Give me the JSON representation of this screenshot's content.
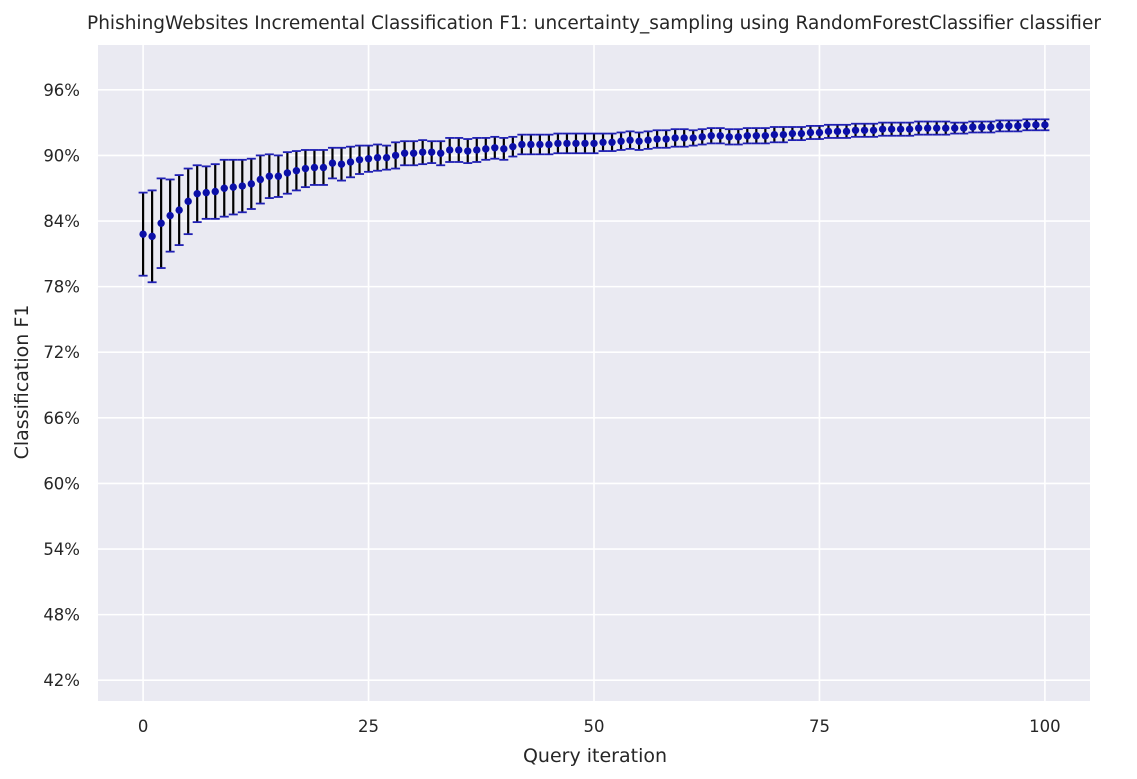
{
  "chart_data": {
    "type": "scatter",
    "title": "PhishingWebsites Incremental Classification F1: uncertainty_sampling using RandomForestClassifier classifier",
    "xlabel": "Query iteration",
    "ylabel": "Classification F1",
    "xlim": [
      -5,
      105
    ],
    "ylim": [
      40.1,
      100.1
    ],
    "xticks": [
      0,
      25,
      50,
      75,
      100
    ],
    "yticks": [
      42,
      48,
      54,
      60,
      66,
      72,
      78,
      84,
      90,
      96
    ],
    "ytick_labels": [
      "42%",
      "48%",
      "54%",
      "60%",
      "66%",
      "72%",
      "78%",
      "84%",
      "90%",
      "96%"
    ],
    "grid": true,
    "style": {
      "background": "#EAEAF2",
      "grid_color": "#ffffff",
      "marker_color": "#0B0FA8",
      "errorbar_color": "#000000",
      "cap_color": "#1F1FB4"
    },
    "series": [
      {
        "x": [
          0,
          1,
          2,
          3,
          4,
          5,
          6,
          7,
          8,
          9,
          10,
          11,
          12,
          13,
          14,
          15,
          16,
          17,
          18,
          19,
          20,
          21,
          22,
          23,
          24,
          25,
          26,
          27,
          28,
          29,
          30,
          31,
          32,
          33,
          34,
          35,
          36,
          37,
          38,
          39,
          40,
          41,
          42,
          43,
          44,
          45,
          46,
          47,
          48,
          49,
          50,
          51,
          52,
          53,
          54,
          55,
          56,
          57,
          58,
          59,
          60,
          61,
          62,
          63,
          64,
          65,
          66,
          67,
          68,
          69,
          70,
          71,
          72,
          73,
          74,
          75,
          76,
          77,
          78,
          79,
          80,
          81,
          82,
          83,
          84,
          85,
          86,
          87,
          88,
          89,
          90,
          91,
          92,
          93,
          94,
          95,
          96,
          97,
          98,
          99,
          100
        ],
        "y": [
          82.8,
          82.6,
          83.8,
          84.5,
          85.0,
          85.8,
          86.5,
          86.6,
          86.7,
          87.0,
          87.1,
          87.2,
          87.4,
          87.8,
          88.1,
          88.1,
          88.4,
          88.6,
          88.8,
          88.9,
          88.9,
          89.3,
          89.2,
          89.4,
          89.6,
          89.7,
          89.8,
          89.8,
          90.0,
          90.2,
          90.2,
          90.3,
          90.3,
          90.2,
          90.5,
          90.5,
          90.4,
          90.5,
          90.6,
          90.7,
          90.6,
          90.8,
          91.0,
          91.0,
          91.0,
          91.0,
          91.1,
          91.1,
          91.1,
          91.1,
          91.1,
          91.2,
          91.2,
          91.3,
          91.4,
          91.3,
          91.4,
          91.5,
          91.5,
          91.6,
          91.6,
          91.6,
          91.7,
          91.8,
          91.8,
          91.7,
          91.7,
          91.8,
          91.8,
          91.8,
          91.9,
          91.9,
          92.0,
          92.0,
          92.1,
          92.1,
          92.2,
          92.2,
          92.2,
          92.3,
          92.3,
          92.3,
          92.4,
          92.4,
          92.4,
          92.4,
          92.5,
          92.5,
          92.5,
          92.5,
          92.5,
          92.5,
          92.6,
          92.6,
          92.6,
          92.7,
          92.7,
          92.7,
          92.8,
          92.8,
          92.8
        ],
        "err": [
          3.8,
          4.2,
          4.1,
          3.3,
          3.2,
          3.0,
          2.6,
          2.4,
          2.5,
          2.6,
          2.5,
          2.4,
          2.3,
          2.2,
          2.0,
          1.9,
          1.9,
          1.8,
          1.7,
          1.6,
          1.6,
          1.4,
          1.5,
          1.4,
          1.3,
          1.2,
          1.2,
          1.1,
          1.2,
          1.1,
          1.1,
          1.1,
          1.0,
          1.1,
          1.1,
          1.1,
          1.1,
          1.1,
          1.0,
          1.0,
          1.0,
          0.9,
          0.9,
          0.9,
          0.9,
          0.9,
          0.9,
          0.9,
          0.9,
          0.9,
          0.9,
          0.8,
          0.8,
          0.8,
          0.8,
          0.8,
          0.8,
          0.8,
          0.8,
          0.8,
          0.8,
          0.7,
          0.7,
          0.7,
          0.7,
          0.7,
          0.7,
          0.7,
          0.7,
          0.7,
          0.7,
          0.7,
          0.6,
          0.6,
          0.6,
          0.6,
          0.6,
          0.6,
          0.6,
          0.6,
          0.6,
          0.6,
          0.6,
          0.6,
          0.6,
          0.6,
          0.6,
          0.6,
          0.6,
          0.6,
          0.5,
          0.5,
          0.5,
          0.5,
          0.5,
          0.5,
          0.5,
          0.5,
          0.5,
          0.5,
          0.5
        ]
      }
    ]
  }
}
